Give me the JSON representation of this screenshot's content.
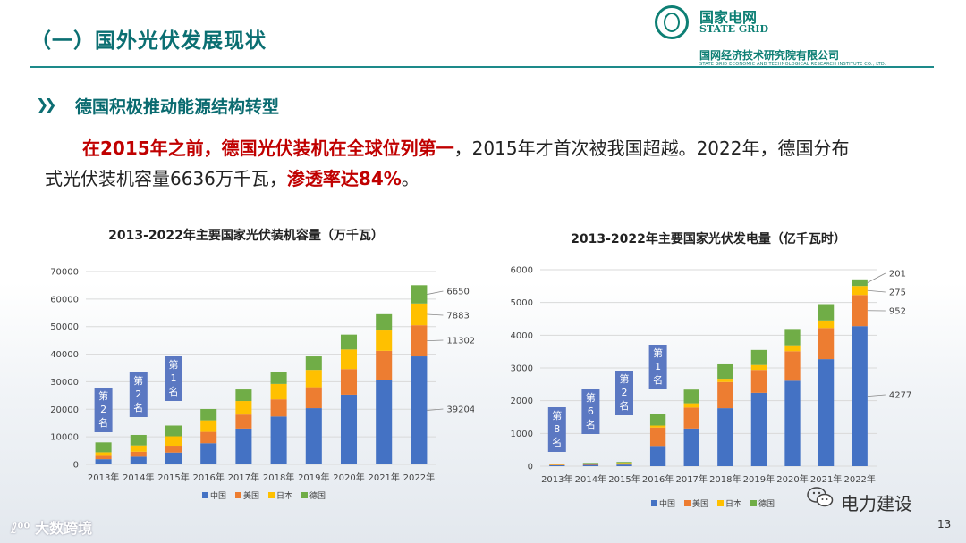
{
  "header": {
    "title": "（一）国外光伏发展现状",
    "brand_cn": "国家电网",
    "brand_en": "STATE GRID",
    "institute_cn": "国网经济技术研究院有限公司",
    "institute_en": "STATE GRID ECONOMIC AND TECHNOLOGICAL RESEARCH INSTITUTE CO., LTD."
  },
  "section": {
    "bullet": "德国积极推动能源结构转型"
  },
  "paragraph": {
    "p1_red": "在2015年之前，德国光伏装机在全球位列第一",
    "p1_rest": "，2015年才首次被我国超越。2022年，德国分布",
    "p2_start": "式光伏装机容量6636万千瓦，",
    "p2_red": "渗透率达84%",
    "p2_end": "。"
  },
  "legend": [
    "中国",
    "美国",
    "日本",
    "德国"
  ],
  "colors": {
    "china": "#4472c4",
    "usa": "#ed7d31",
    "japan": "#ffc000",
    "germany": "#70ad47",
    "rank": "#5b78c2"
  },
  "chart_data": [
    {
      "type": "bar",
      "stacked": true,
      "title": "2013-2022年主要国家光伏装机容量（万千瓦）",
      "categories": [
        "2013年",
        "2014年",
        "2015年",
        "2016年",
        "2017年",
        "2018年",
        "2019年",
        "2020年",
        "2021年",
        "2022年"
      ],
      "ylim": [
        0,
        70000
      ],
      "yticks": [
        0,
        10000,
        20000,
        30000,
        40000,
        50000,
        60000,
        70000
      ],
      "series": [
        {
          "name": "中国",
          "values": [
            1900,
            2800,
            4300,
            7700,
            13000,
            17400,
            20400,
            25300,
            30600,
            39204
          ]
        },
        {
          "name": "美国",
          "values": [
            1200,
            1800,
            2500,
            4100,
            5100,
            6200,
            7600,
            9300,
            10600,
            11302
          ]
        },
        {
          "name": "日本",
          "values": [
            1300,
            2300,
            3400,
            4200,
            4900,
            5600,
            6300,
            7100,
            7400,
            7883
          ]
        },
        {
          "name": "德国",
          "values": [
            3600,
            3800,
            3900,
            4100,
            4200,
            4500,
            4900,
            5400,
            5900,
            6650
          ]
        }
      ],
      "annotations": [
        "6650",
        "7883",
        "11302",
        "39204"
      ],
      "ranks": [
        {
          "label": "第2名",
          "category": "2013年"
        },
        {
          "label": "第2名",
          "category": "2014年"
        },
        {
          "label": "第1名",
          "category": "2015年"
        }
      ]
    },
    {
      "type": "bar",
      "stacked": true,
      "title": "2013-2022年主要国家光伏发电量（亿千瓦时）",
      "categories": [
        "2013年",
        "2014年",
        "2015年",
        "2016年",
        "2017年",
        "2018年",
        "2019年",
        "2020年",
        "2021年",
        "2022年"
      ],
      "ylim": [
        0,
        6000
      ],
      "yticks": [
        0,
        1000,
        2000,
        3000,
        4000,
        5000,
        6000
      ],
      "series": [
        {
          "name": "中国",
          "values": [
            30,
            40,
            50,
            620,
            1150,
            1770,
            2240,
            2610,
            3270,
            4277
          ]
        },
        {
          "name": "美国",
          "values": [
            15,
            20,
            30,
            560,
            640,
            800,
            700,
            900,
            950,
            952
          ]
        },
        {
          "name": "日本",
          "values": [
            10,
            15,
            20,
            60,
            130,
            100,
            150,
            180,
            230,
            275
          ]
        },
        {
          "name": "德国",
          "values": [
            20,
            25,
            30,
            350,
            420,
            440,
            460,
            500,
            500,
            201
          ]
        }
      ],
      "annotations": [
        "201",
        "275",
        "952",
        "4277"
      ],
      "ranks": [
        {
          "label": "第8名",
          "category": "2013年"
        },
        {
          "label": "第6名",
          "category": "2014年"
        },
        {
          "label": "第2名",
          "category": "2015年"
        },
        {
          "label": "第1名",
          "category": "2016年"
        }
      ]
    }
  ],
  "footer": {
    "watermark_left": "大数跨境",
    "watermark_right": "电力建设",
    "page_number": "13"
  }
}
